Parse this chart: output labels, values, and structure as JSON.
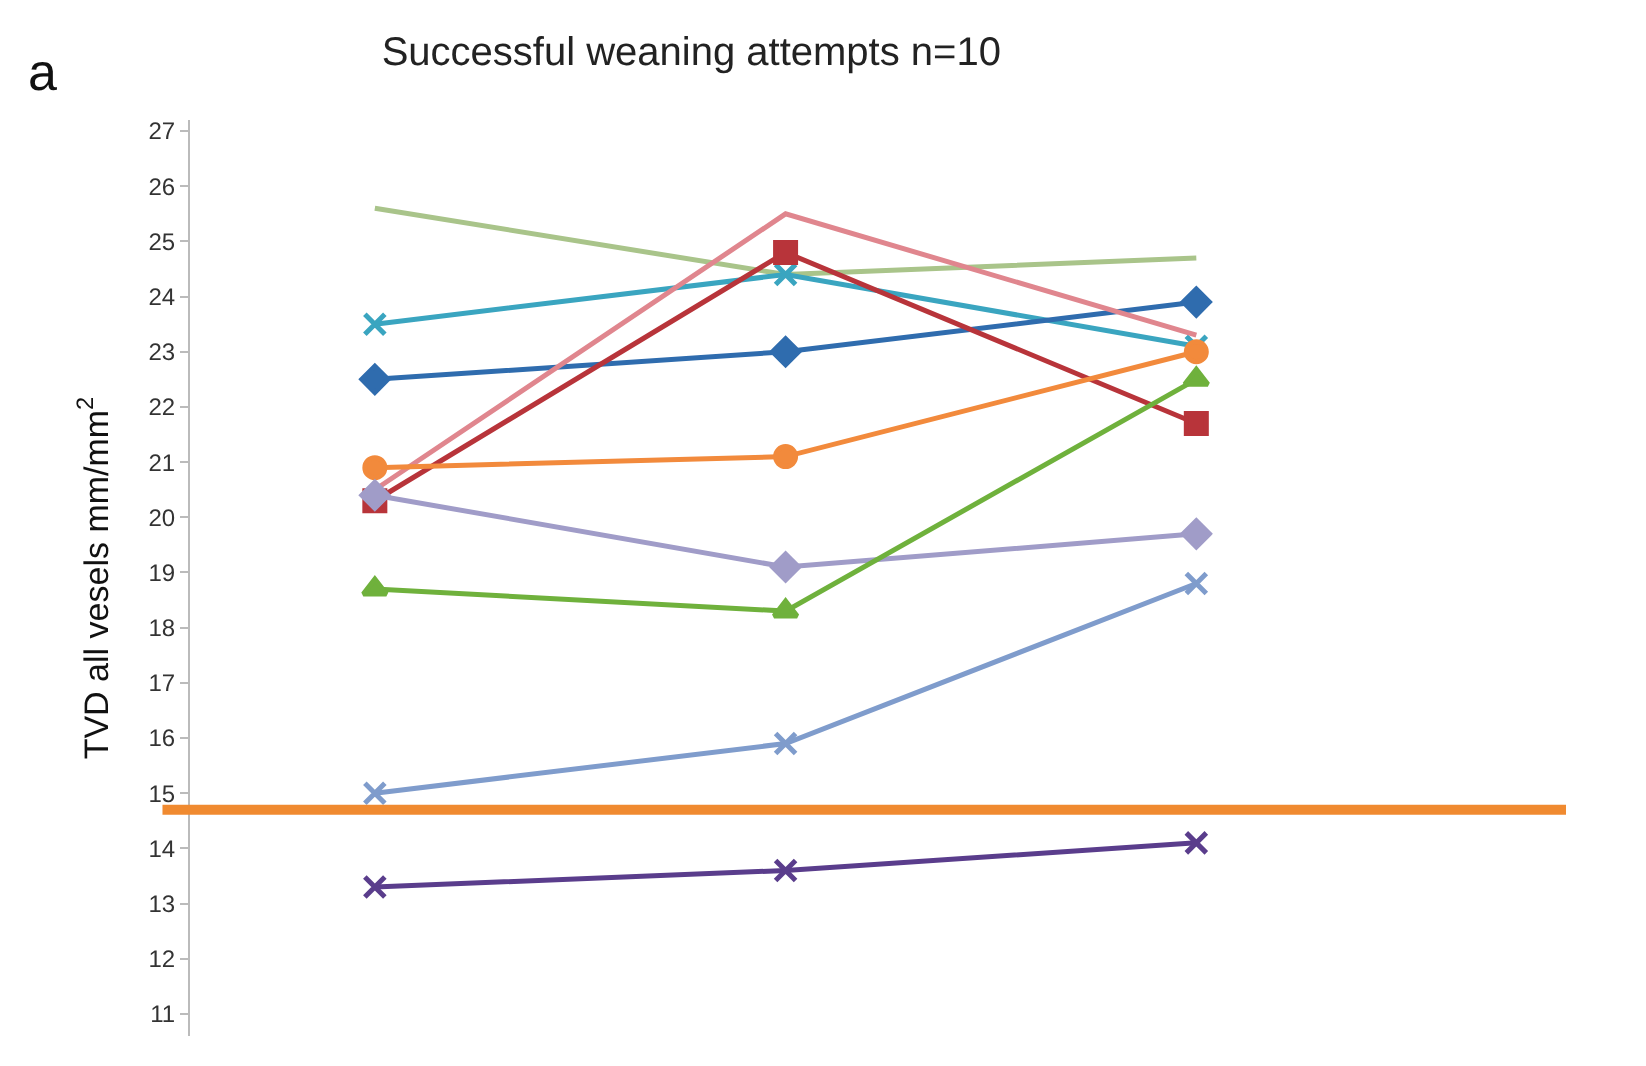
{
  "chart_data": {
    "type": "line",
    "title": "Successful weaning attempts n=10",
    "ylabel": "TVD all vesels mm/mm$^{2}$",
    "annotations": [
      "a"
    ],
    "categories": [
      null,
      null,
      null
    ],
    "ylim": [
      10.6,
      27.2
    ],
    "yticks": [
      11,
      12,
      13,
      14,
      15,
      16,
      17,
      18,
      19,
      20,
      21,
      22,
      23,
      24,
      25,
      26,
      27
    ],
    "tick_labels": "y",
    "series": [
      {
        "color": "#a9c48a",
        "marker": "none",
        "values": [
          25.6,
          24.4,
          24.7
        ]
      },
      {
        "color": "#3aa5c0",
        "marker": "cross",
        "values": [
          23.5,
          24.4,
          23.1
        ]
      },
      {
        "color": "#2f6cae",
        "marker": "diamond",
        "values": [
          22.5,
          23.0,
          23.9
        ]
      },
      {
        "color": "#e0868e",
        "marker": "none",
        "values": [
          20.5,
          25.5,
          23.3
        ]
      },
      {
        "color": "#b8343a",
        "marker": "square",
        "values": [
          20.3,
          24.8,
          21.7
        ]
      },
      {
        "color": "#f28a3c",
        "marker": "circle",
        "values": [
          20.9,
          21.1,
          23.0
        ]
      },
      {
        "color": "#a09cc8",
        "marker": "diamond",
        "values": [
          20.4,
          19.1,
          19.7
        ]
      },
      {
        "color": "#6fb13c",
        "marker": "triangle",
        "values": [
          18.7,
          18.3,
          22.5
        ]
      },
      {
        "color": "#7f9ccc",
        "marker": "cross",
        "values": [
          15.0,
          15.9,
          18.8
        ]
      },
      {
        "color": "#5a3d8c",
        "marker": "cross",
        "values": [
          13.3,
          13.6,
          14.1
        ]
      }
    ],
    "ref_lines": [
      {
        "axis": "y",
        "value": 14.7,
        "color": "#f08a30",
        "line_style": "solid"
      }
    ]
  }
}
